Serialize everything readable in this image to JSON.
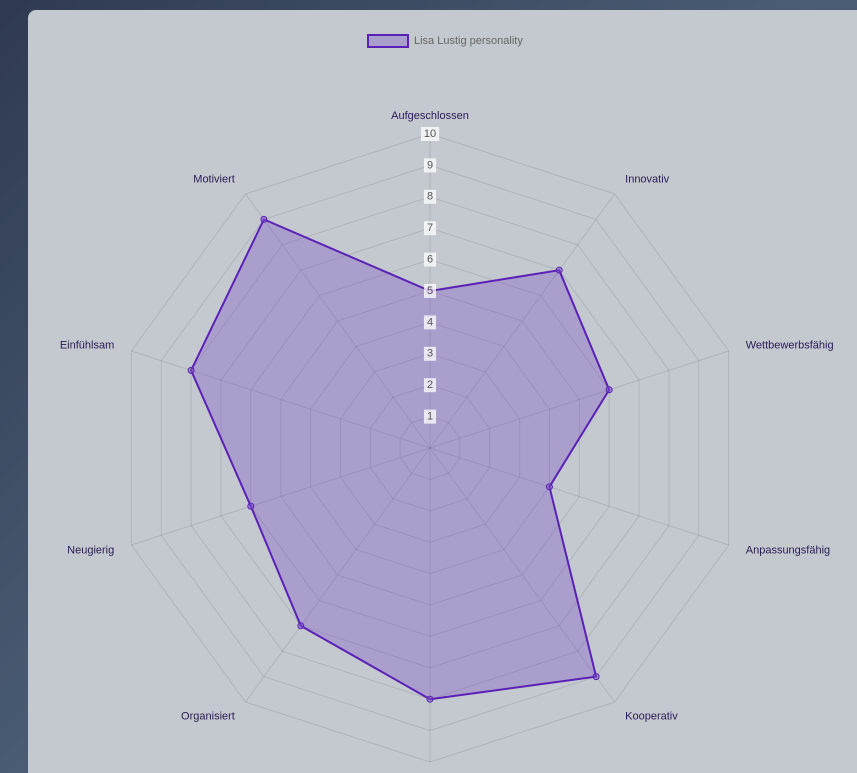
{
  "chart_data": {
    "type": "radar",
    "categories": [
      "Aufgeschlossen",
      "Innovativ",
      "Wettbewerbsfähig",
      "Anpassungsfähig",
      "Kooperativ",
      null,
      "Organisiert",
      "Neugierig",
      "Einfühlsam",
      "Motiviert"
    ],
    "series": [
      {
        "name": "Lisa Lustig personality",
        "color": "#5b21b6",
        "values": [
          5,
          7,
          6,
          4,
          9,
          8,
          7,
          6,
          8,
          9
        ]
      }
    ],
    "rlim": [
      0,
      10
    ],
    "rticks": [
      1,
      2,
      3,
      4,
      5,
      6,
      7,
      8,
      9,
      10
    ],
    "grid": true,
    "legend": "top"
  }
}
